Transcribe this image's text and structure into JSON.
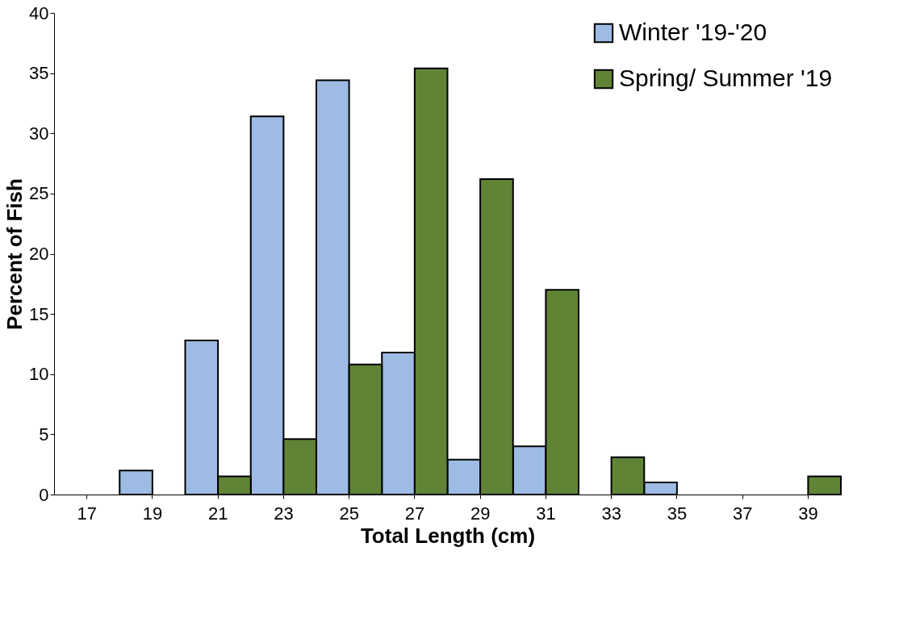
{
  "chart_data": {
    "type": "bar",
    "xlabel": "Total Length (cm)",
    "ylabel": "Percent of Fish",
    "categories": [
      "17",
      "19",
      "21",
      "23",
      "25",
      "27",
      "29",
      "31",
      "33",
      "35",
      "37",
      "39"
    ],
    "series": [
      {
        "name": "Winter '19-'20",
        "color": "#9dbbe3",
        "values": [
          0,
          2.0,
          12.8,
          31.4,
          34.4,
          11.8,
          2.9,
          4.0,
          0,
          1.0,
          0,
          0
        ]
      },
      {
        "name": "Spring/ Summer '19",
        "color": "#608335",
        "values": [
          0,
          0,
          1.5,
          4.6,
          10.8,
          35.4,
          26.2,
          17.0,
          3.1,
          0,
          0,
          1.5
        ]
      }
    ],
    "ylim": [
      0,
      40
    ],
    "yticks": [
      0,
      5,
      10,
      15,
      20,
      25,
      30,
      35,
      40
    ],
    "grid": false,
    "legend": "top right"
  }
}
